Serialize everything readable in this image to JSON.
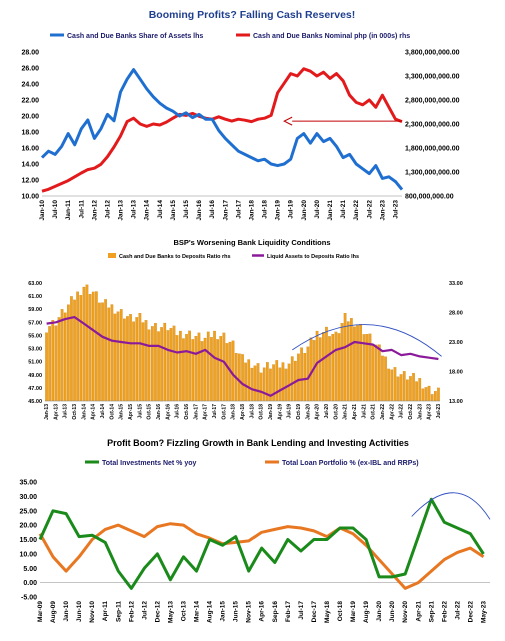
{
  "chart_data": [
    {
      "type": "line",
      "title": "Booming Profits? Falling Cash Reserves!",
      "legend_position": "top",
      "grid": false,
      "colors": {
        "left": "#1f6fd1",
        "right": "#e31a1c",
        "title": "#1f3f8f"
      },
      "x_tick_labels": [
        "Jan-10",
        "Jul-10",
        "Jan-11",
        "Jul-11",
        "Jan-12",
        "Jul-12",
        "Jan-13",
        "Jul-13",
        "Jan-14",
        "Jul-14",
        "Jan-15",
        "Jul-15",
        "Jan-16",
        "Jul-16",
        "Jan-17",
        "Jul-17",
        "Jan-18",
        "Jul-18",
        "Jan-19",
        "Jul-19",
        "Jan-20",
        "Jul-20",
        "Jan-21",
        "Jul-21",
        "Jan-22",
        "Jul-22",
        "Jan-23",
        "Jul-23"
      ],
      "y_left_ticks": [
        "10.00",
        "12.00",
        "14.00",
        "16.00",
        "18.00",
        "20.00",
        "22.00",
        "24.00",
        "26.00",
        "28.00"
      ],
      "y_right_ticks": [
        "800,000,000.00",
        "1,300,000,000.00",
        "1,800,000,000.00",
        "2,300,000,000.00",
        "2,800,000,000.00",
        "3,300,000,000.00",
        "3,800,000,000.00"
      ],
      "ylim_left": [
        10,
        28
      ],
      "ylim_right": [
        800000000,
        3800000000
      ],
      "series": [
        {
          "name": "Cash and Due Banks Share of Assets lhs",
          "axis": "left",
          "x_index": [
            0,
            1,
            2,
            3,
            4,
            5,
            6,
            7,
            8,
            9,
            10,
            11,
            12,
            13,
            14,
            15,
            16,
            17,
            18,
            19,
            20,
            21,
            22,
            23,
            24,
            25,
            26,
            27,
            28,
            29,
            30,
            31,
            32,
            33,
            34,
            35,
            36,
            37,
            38,
            39,
            40,
            41,
            42,
            43,
            44,
            45,
            46,
            47,
            48,
            49,
            50,
            51,
            52,
            53,
            54,
            55
          ],
          "values": [
            14.8,
            15.6,
            15.2,
            16.2,
            17.8,
            16.4,
            18.4,
            19.5,
            17.2,
            18.4,
            20.2,
            19.4,
            23.0,
            24.6,
            25.8,
            24.6,
            23.4,
            22.4,
            21.6,
            21.0,
            20.6,
            20.0,
            20.4,
            19.8,
            20.2,
            19.6,
            19.6,
            18.2,
            17.2,
            16.4,
            15.6,
            15.2,
            14.8,
            14.4,
            14.6,
            14.0,
            13.8,
            14.0,
            14.6,
            17.2,
            17.8,
            16.6,
            17.8,
            16.8,
            17.2,
            16.2,
            14.8,
            15.2,
            14.0,
            13.4,
            12.8,
            13.8,
            12.2,
            12.4,
            11.8,
            10.8
          ]
        },
        {
          "name": "Cash and Due Banks Nominal php (in 000s) rhs",
          "axis": "right",
          "x_index": [
            0,
            1,
            2,
            3,
            4,
            5,
            6,
            7,
            8,
            9,
            10,
            11,
            12,
            13,
            14,
            15,
            16,
            17,
            18,
            19,
            20,
            21,
            22,
            23,
            24,
            25,
            26,
            27,
            28,
            29,
            30,
            31,
            32,
            33,
            34,
            35,
            36,
            37,
            38,
            39,
            40,
            41,
            42,
            43,
            44,
            45,
            46,
            47,
            48,
            49,
            50,
            51,
            52,
            53,
            54,
            55
          ],
          "values": [
            900000000,
            940000000,
            1000000000,
            1060000000,
            1120000000,
            1200000000,
            1280000000,
            1350000000,
            1380000000,
            1460000000,
            1620000000,
            1820000000,
            2050000000,
            2350000000,
            2420000000,
            2300000000,
            2250000000,
            2300000000,
            2280000000,
            2340000000,
            2420000000,
            2500000000,
            2480000000,
            2520000000,
            2460000000,
            2420000000,
            2400000000,
            2450000000,
            2400000000,
            2360000000,
            2400000000,
            2380000000,
            2350000000,
            2400000000,
            2420000000,
            2480000000,
            2950000000,
            3150000000,
            3350000000,
            3300000000,
            3450000000,
            3400000000,
            3300000000,
            3380000000,
            3250000000,
            3350000000,
            3200000000,
            2900000000,
            2750000000,
            2700000000,
            2800000000,
            2650000000,
            2900000000,
            2650000000,
            2400000000,
            2350000000
          ]
        }
      ],
      "annotation": {
        "type": "arrow",
        "from_index": 55,
        "to_index": 37,
        "axis": "right",
        "value": 2360000000,
        "color": "#c00000"
      }
    },
    {
      "type": "bar",
      "title": "BSP's Worsening Bank Liquidity Conditions",
      "legend_position": "top",
      "grid": false,
      "colors": {
        "bars": "#f0a020",
        "line": "#8b1a9a",
        "trend": "#3050c0"
      },
      "x_tick_labels": [
        "Jan-13",
        "Apr-13",
        "Jul-13",
        "Oct-13",
        "Jan-14",
        "Apr-14",
        "Jul-14",
        "Oct-14",
        "Jan-15",
        "Apr-15",
        "Jul-15",
        "Oct-15",
        "Jan-16",
        "Apr-16",
        "Jul-16",
        "Oct-16",
        "Jan-17",
        "Apr-17",
        "Jul-17",
        "Oct-17",
        "Jan-18",
        "Apr-18",
        "Jul-18",
        "Oct-18",
        "Jan-19",
        "Apr-19",
        "Jul-19",
        "Oct-19",
        "Jan-20",
        "Apr-20",
        "Jul-20",
        "Oct-20",
        "Jan-21",
        "Apr-21",
        "Jul-21",
        "Oct-21",
        "Jan-22",
        "Apr-22",
        "Jul-22",
        "Oct-22",
        "Jan-23",
        "Apr-23",
        "Jul-23"
      ],
      "y_left_ticks": [
        "45.00",
        "47.00",
        "49.00",
        "51.00",
        "53.00",
        "55.00",
        "57.00",
        "59.00",
        "61.00",
        "63.00"
      ],
      "y_right_ticks": [
        "13.00",
        "18.00",
        "23.00",
        "28.00",
        "33.00"
      ],
      "ylim_left": [
        45,
        63
      ],
      "ylim_right": [
        13,
        33
      ],
      "series": [
        {
          "name": "Cash and Due Banks to Deposits Ratio rhs",
          "axis": "right",
          "x_index": [
            0,
            3,
            6,
            9,
            12,
            15,
            18,
            21,
            24,
            27,
            30,
            33,
            36,
            39,
            42,
            45,
            48,
            51,
            54,
            57,
            60,
            63,
            66,
            69,
            72,
            75,
            78,
            81,
            84,
            87,
            90,
            93,
            96,
            99,
            102,
            105,
            108,
            111,
            114,
            117,
            120,
            123,
            126
          ],
          "values": [
            25.5,
            26.5,
            28.5,
            30.5,
            32.5,
            31.5,
            29.5,
            29.0,
            28.0,
            27.0,
            27.0,
            26.0,
            25.5,
            25.5,
            24.5,
            24.5,
            24.0,
            23.5,
            24.5,
            24.0,
            22.5,
            20.0,
            19.5,
            18.5,
            19.0,
            19.0,
            19.5,
            21.0,
            22.0,
            24.5,
            25.0,
            24.0,
            27.0,
            26.5,
            25.0,
            23.0,
            21.0,
            18.5,
            17.5,
            17.0,
            16.5,
            15.0,
            14.5
          ]
        },
        {
          "name": "Liquid Assets to Deposits Ratio lhs",
          "axis": "left",
          "x_index": [
            0,
            3,
            6,
            9,
            12,
            15,
            18,
            21,
            24,
            27,
            30,
            33,
            36,
            39,
            42,
            45,
            48,
            51,
            54,
            57,
            60,
            63,
            66,
            69,
            72,
            75,
            78,
            81,
            84,
            87,
            90,
            93,
            96,
            99,
            102,
            105,
            108,
            111,
            114,
            117,
            120,
            123,
            126
          ],
          "values": [
            56.8,
            57.0,
            57.5,
            57.8,
            56.8,
            55.8,
            54.8,
            54.2,
            54.0,
            53.8,
            53.8,
            53.4,
            53.4,
            52.8,
            52.4,
            52.6,
            52.2,
            52.8,
            51.6,
            51.0,
            49.0,
            47.6,
            46.8,
            46.4,
            45.8,
            46.6,
            47.4,
            48.2,
            48.4,
            50.8,
            51.8,
            52.8,
            53.2,
            54.0,
            53.8,
            53.6,
            52.6,
            52.8,
            52.0,
            52.2,
            51.8,
            51.6,
            51.4
          ]
        }
      ]
    },
    {
      "type": "line",
      "title": "Profit Boom? Fizzling Growth in Bank Lending and Investing Activities",
      "legend_position": "top",
      "grid": false,
      "colors": {
        "investments": "#1a8a1a",
        "loans": "#e87722",
        "trend": "#3050c0"
      },
      "x_tick_labels": [
        "Mar-09",
        "Aug-09",
        "Jan-10",
        "Jun-10",
        "Nov-10",
        "Apr-11",
        "Sep-11",
        "Feb-12",
        "Jul-12",
        "Dec-12",
        "May-13",
        "Oct-13",
        "Mar-14",
        "Aug-14",
        "Jan-15",
        "Jun-15",
        "Nov-15",
        "Apr-16",
        "Sep-16",
        "Feb-17",
        "Jul-17",
        "Dec-17",
        "May-18",
        "Oct-18",
        "Mar-19",
        "Aug-19",
        "Jan-20",
        "Jun-20",
        "Nov-20",
        "Apr-21",
        "Sep-21",
        "Feb-22",
        "Jul-22",
        "Dec-22",
        "May-23"
      ],
      "y_ticks": [
        "-5.00",
        "0.00",
        "5.00",
        "10.00",
        "15.00",
        "20.00",
        "25.00",
        "30.00",
        "35.00"
      ],
      "ylim": [
        -5,
        35
      ],
      "series": [
        {
          "name": "Total Investments Net % yoy",
          "x_index": [
            0,
            2,
            4,
            6,
            8,
            10,
            12,
            14,
            16,
            18,
            20,
            22,
            24,
            26,
            28,
            30,
            32,
            34,
            36,
            38,
            40,
            42,
            44,
            46,
            48,
            50,
            52,
            54,
            56,
            58,
            60,
            62,
            64,
            66,
            68
          ],
          "values": [
            15.0,
            25.0,
            24.0,
            16.0,
            16.5,
            14.0,
            4.0,
            -2.0,
            5.0,
            10.0,
            1.0,
            9.0,
            4.0,
            15.0,
            13.0,
            16.0,
            4.0,
            12.0,
            7.0,
            15.0,
            11.0,
            15.0,
            15.0,
            19.0,
            19.0,
            15.0,
            2.0,
            2.0,
            3.0,
            16.0,
            29.0,
            21.0,
            19.0,
            17.0,
            10.0
          ]
        },
        {
          "name": "Total Loan Portfolio % (ex-IBL and RRPs)",
          "x_index": [
            0,
            2,
            4,
            6,
            8,
            10,
            12,
            14,
            16,
            18,
            20,
            22,
            24,
            26,
            28,
            30,
            32,
            34,
            36,
            38,
            40,
            42,
            44,
            46,
            48,
            50,
            52,
            54,
            56,
            58,
            60,
            62,
            64,
            66,
            68
          ],
          "values": [
            17.0,
            9.0,
            4.0,
            9.0,
            15.0,
            18.5,
            20.0,
            18.0,
            16.0,
            19.5,
            20.5,
            20.0,
            17.0,
            15.5,
            13.5,
            14.0,
            14.5,
            17.5,
            18.5,
            19.5,
            19.0,
            18.0,
            16.0,
            19.0,
            17.0,
            13.0,
            8.0,
            3.0,
            -2.0,
            0.0,
            4.0,
            8.0,
            10.5,
            12.0,
            9.0
          ]
        }
      ]
    }
  ]
}
